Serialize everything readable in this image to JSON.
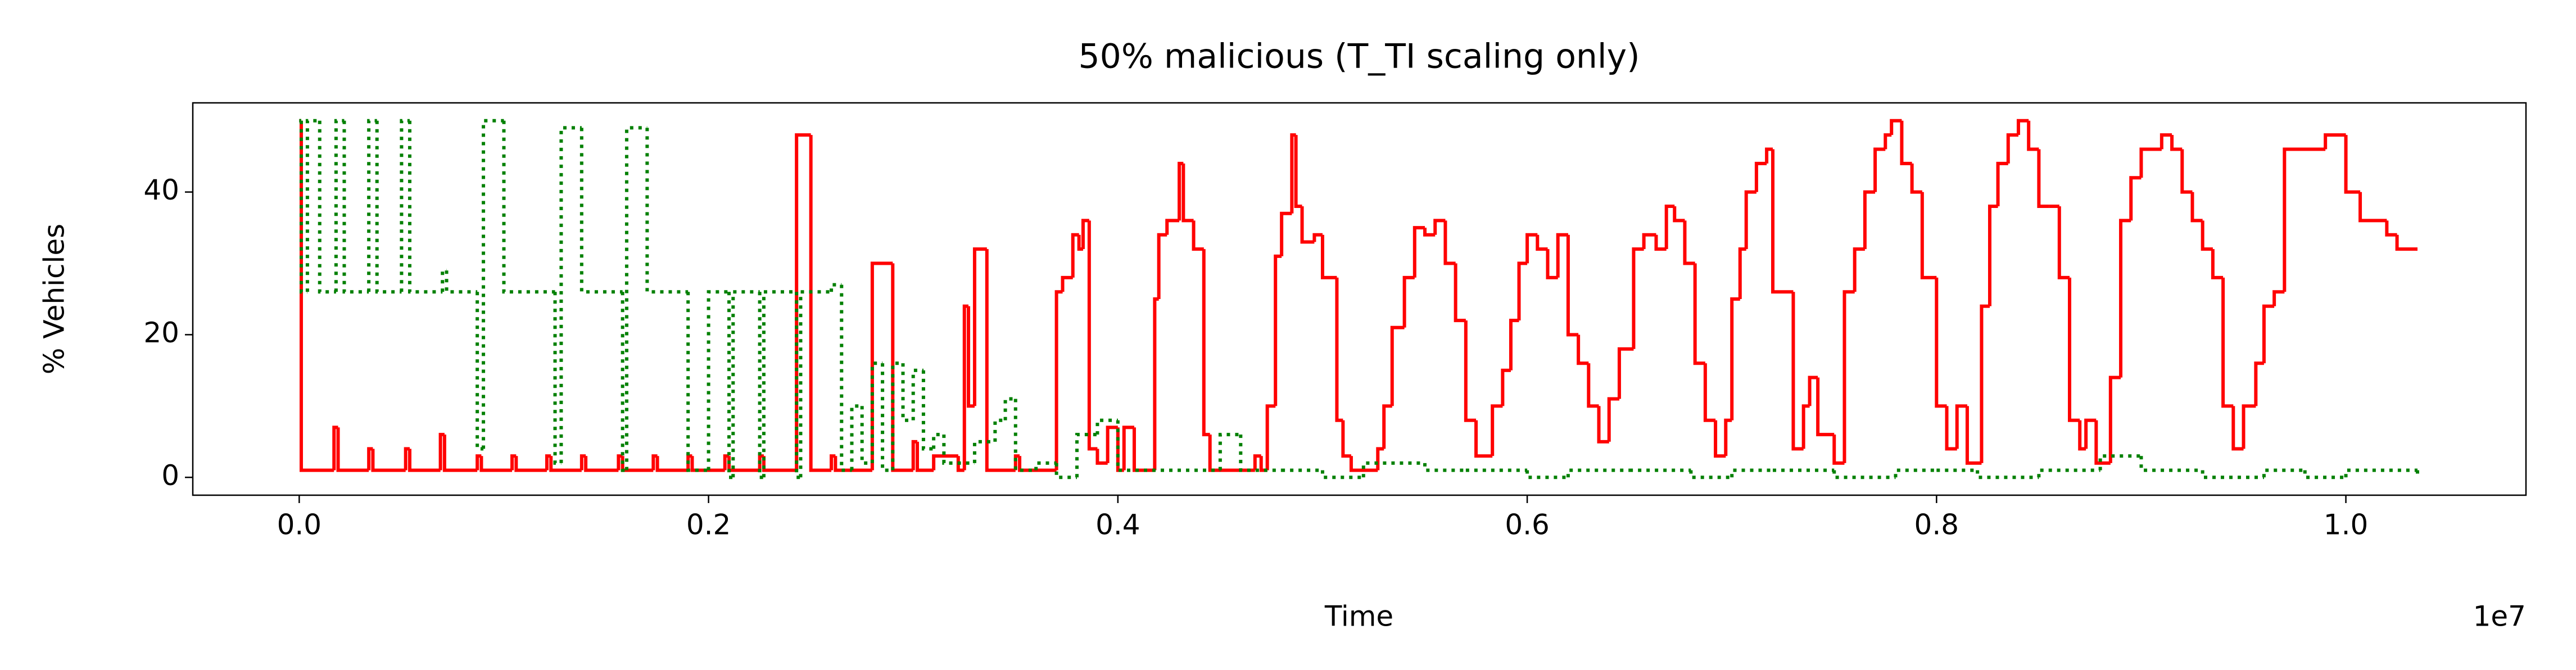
{
  "chart_data": {
    "type": "line",
    "drawstyle": "steps-post",
    "title": "50% malicious (T_TI scaling only)",
    "xlabel": "Time",
    "ylabel": "% Vehicles",
    "x_offset_label": "1e7",
    "xlim": [
      -0.052,
      1.088
    ],
    "ylim": [
      -2.5,
      52.5
    ],
    "xticks": [
      {
        "value": 0,
        "label": "0.0"
      },
      0.2,
      0.4,
      0.6,
      0.8,
      {
        "value": 1,
        "label": "1.0"
      }
    ],
    "yticks": [
      0,
      20,
      40
    ],
    "grid": false,
    "series": [
      {
        "color": "#ff0000",
        "style": "solid",
        "x": [
          0,
          0.001,
          0.017,
          0.019,
          0.034,
          0.036,
          0.052,
          0.054,
          0.069,
          0.071,
          0.087,
          0.089,
          0.104,
          0.106,
          0.121,
          0.123,
          0.138,
          0.14,
          0.156,
          0.158,
          0.173,
          0.175,
          0.19,
          0.192,
          0.208,
          0.21,
          0.225,
          0.227,
          0.243,
          0.25,
          0.26,
          0.262,
          0.28,
          0.29,
          0.3,
          0.302,
          0.31,
          0.322,
          0.325,
          0.327,
          0.33,
          0.336,
          0.35,
          0.352,
          0.37,
          0.373,
          0.378,
          0.381,
          0.383,
          0.386,
          0.39,
          0.395,
          0.4,
          0.403,
          0.408,
          0.418,
          0.42,
          0.424,
          0.43,
          0.432,
          0.437,
          0.442,
          0.445,
          0.46,
          0.467,
          0.47,
          0.473,
          0.477,
          0.48,
          0.485,
          0.487,
          0.49,
          0.496,
          0.5,
          0.507,
          0.51,
          0.514,
          0.527,
          0.53,
          0.534,
          0.54,
          0.545,
          0.55,
          0.555,
          0.56,
          0.565,
          0.57,
          0.575,
          0.583,
          0.588,
          0.592,
          0.596,
          0.6,
          0.605,
          0.61,
          0.615,
          0.62,
          0.625,
          0.63,
          0.635,
          0.64,
          0.645,
          0.652,
          0.657,
          0.663,
          0.668,
          0.672,
          0.677,
          0.682,
          0.687,
          0.692,
          0.697,
          0.7,
          0.704,
          0.707,
          0.712,
          0.717,
          0.72,
          0.73,
          0.735,
          0.738,
          0.742,
          0.75,
          0.755,
          0.76,
          0.765,
          0.77,
          0.775,
          0.778,
          0.783,
          0.788,
          0.793,
          0.8,
          0.805,
          0.81,
          0.815,
          0.822,
          0.826,
          0.83,
          0.835,
          0.84,
          0.845,
          0.85,
          0.855,
          0.86,
          0.865,
          0.87,
          0.873,
          0.878,
          0.885,
          0.89,
          0.895,
          0.9,
          0.91,
          0.915,
          0.92,
          0.925,
          0.93,
          0.935,
          0.94,
          0.945,
          0.95,
          0.956,
          0.96,
          0.965,
          0.97,
          0.99,
          1.0,
          1.007,
          1.02,
          1.025,
          1.035
        ],
        "values": [
          50,
          1,
          7,
          1,
          4,
          1,
          4,
          1,
          6,
          1,
          3,
          1,
          3,
          1,
          3,
          1,
          3,
          1,
          3,
          1,
          3,
          1,
          3,
          1,
          3,
          1,
          3,
          1,
          48,
          1,
          3,
          1,
          30,
          1,
          5,
          1,
          3,
          1,
          24,
          10,
          32,
          1,
          3,
          1,
          26,
          28,
          34,
          32,
          36,
          4,
          2,
          7,
          1,
          7,
          1,
          25,
          34,
          36,
          44,
          36,
          32,
          6,
          1,
          1,
          3,
          1,
          10,
          31,
          37,
          48,
          38,
          33,
          34,
          28,
          8,
          3,
          1,
          4,
          10,
          21,
          28,
          35,
          34,
          36,
          30,
          22,
          8,
          3,
          10,
          15,
          22,
          30,
          34,
          32,
          28,
          34,
          20,
          16,
          10,
          5,
          11,
          18,
          32,
          34,
          32,
          38,
          36,
          30,
          16,
          8,
          3,
          8,
          25,
          32,
          40,
          44,
          46,
          26,
          4,
          10,
          14,
          6,
          2,
          26,
          32,
          40,
          46,
          48,
          50,
          44,
          40,
          28,
          10,
          4,
          10,
          2,
          24,
          38,
          44,
          48,
          50,
          46,
          38,
          38,
          28,
          8,
          4,
          8,
          2,
          14,
          36,
          42,
          46,
          48,
          46,
          40,
          36,
          32,
          28,
          10,
          4,
          10,
          16,
          24,
          26,
          46,
          48,
          40,
          36,
          34,
          32,
          32
        ]
      },
      {
        "color": "#008000",
        "style": "dotted",
        "x": [
          0,
          0.001,
          0.004,
          0.01,
          0.018,
          0.022,
          0.034,
          0.038,
          0.05,
          0.054,
          0.07,
          0.072,
          0.087,
          0.09,
          0.1,
          0.125,
          0.128,
          0.138,
          0.158,
          0.16,
          0.17,
          0.19,
          0.2,
          0.21,
          0.212,
          0.225,
          0.227,
          0.243,
          0.245,
          0.26,
          0.265,
          0.27,
          0.275,
          0.28,
          0.285,
          0.29,
          0.295,
          0.3,
          0.305,
          0.31,
          0.315,
          0.33,
          0.34,
          0.345,
          0.35,
          0.36,
          0.37,
          0.38,
          0.39,
          0.4,
          0.45,
          0.46,
          0.48,
          0.5,
          0.52,
          0.55,
          0.57,
          0.6,
          0.62,
          0.65,
          0.68,
          0.7,
          0.72,
          0.75,
          0.78,
          0.8,
          0.82,
          0.85,
          0.88,
          0.9,
          0.93,
          0.96,
          0.98,
          1.0,
          1.035
        ],
        "values": [
          50,
          26,
          50,
          26,
          50,
          26,
          50,
          26,
          50,
          26,
          29,
          26,
          4,
          50,
          26,
          2,
          49,
          26,
          1,
          49,
          26,
          1,
          26,
          0,
          26,
          0,
          26,
          0,
          26,
          27,
          1,
          10,
          2,
          16,
          1,
          16,
          8,
          15,
          4,
          6,
          2,
          5,
          8,
          11,
          1,
          2,
          0,
          6,
          8,
          1,
          6,
          1,
          1,
          0,
          2,
          1,
          1,
          0,
          1,
          1,
          0,
          1,
          1,
          0,
          1,
          1,
          0,
          1,
          3,
          1,
          0,
          1,
          0,
          1,
          0
        ]
      }
    ]
  }
}
